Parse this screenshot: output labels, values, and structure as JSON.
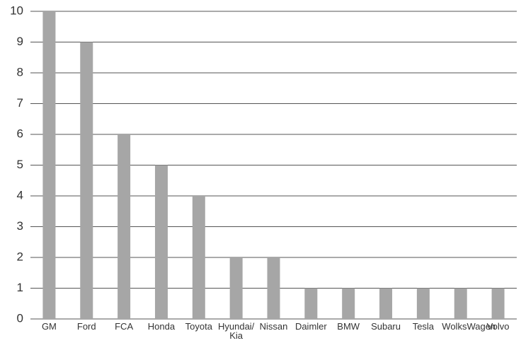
{
  "chart_data": {
    "type": "bar",
    "categories": [
      "GM",
      "Ford",
      "FCA",
      "Honda",
      "Toyota",
      "Hyundai/ Kia",
      "Nissan",
      "Daimler",
      "BMW",
      "Subaru",
      "Tesla",
      "WolksWagen",
      "Volvo"
    ],
    "values": [
      10,
      9,
      6,
      5,
      4,
      2,
      2,
      1,
      1,
      1,
      1,
      1,
      1
    ],
    "color": "#a6a6a6",
    "ylim": [
      0,
      10
    ],
    "yticks": [
      0,
      1,
      2,
      3,
      4,
      5,
      6,
      7,
      8,
      9,
      10
    ],
    "grid": true
  }
}
